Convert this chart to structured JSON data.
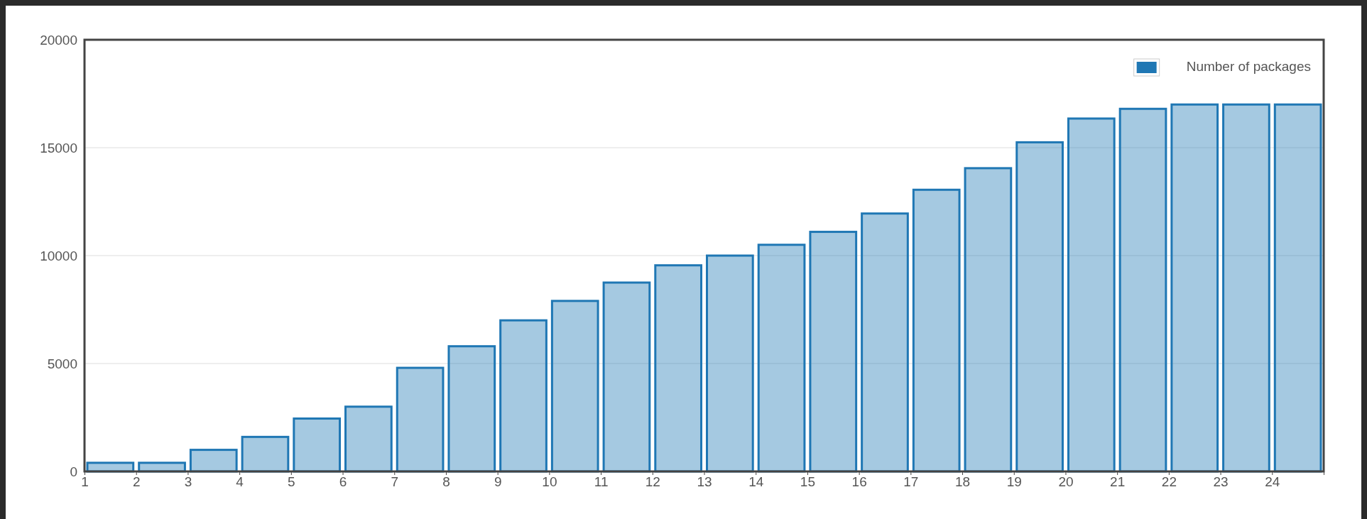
{
  "chart_data": {
    "type": "histogram",
    "bins": [
      1,
      2,
      3,
      4,
      5,
      6,
      7,
      8,
      9,
      10,
      11,
      12,
      13,
      14,
      15,
      16,
      17,
      18,
      19,
      20,
      21,
      22,
      23,
      24,
      25
    ],
    "series": [
      {
        "name": "Number of packages",
        "color": "#1f77b4",
        "values": [
          400,
          400,
          1000,
          1600,
          2450,
          3000,
          4800,
          5800,
          7000,
          7900,
          8750,
          9550,
          10000,
          10500,
          11100,
          11950,
          13050,
          14050,
          15250,
          16350,
          16800,
          17000,
          17000,
          17000
        ]
      }
    ],
    "xlim": [
      1,
      25
    ],
    "xticks": [
      1,
      2,
      3,
      4,
      5,
      6,
      7,
      8,
      9,
      10,
      11,
      12,
      13,
      14,
      15,
      16,
      17,
      18,
      19,
      20,
      21,
      22,
      23,
      24
    ],
    "ylim": [
      0,
      20000
    ],
    "yticks": [
      0,
      5000,
      10000,
      15000,
      20000
    ],
    "grid": "y",
    "legend": "top right"
  }
}
